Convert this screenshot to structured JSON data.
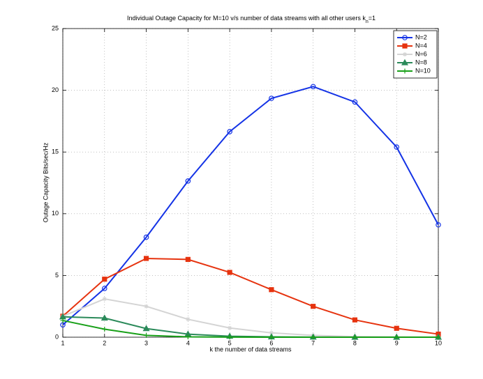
{
  "chart_data": {
    "type": "line",
    "title": "Individual Outage Capacity for M=10 v/s number of data streams with all other users k",
    "title_subscript": "n",
    "title_suffix": "=1",
    "x_label": "k the number of data streams",
    "y_label": "Outage Capacity Bits/sec/Hz",
    "x": [
      1,
      2,
      3,
      4,
      5,
      6,
      7,
      8,
      9,
      10
    ],
    "xlim": [
      1,
      10
    ],
    "xticks": [
      1,
      2,
      3,
      4,
      5,
      6,
      7,
      8,
      9,
      10
    ],
    "ylim": [
      0,
      25
    ],
    "yticks": [
      0,
      5,
      10,
      15,
      20,
      25
    ],
    "grid": true,
    "legend": "northeast",
    "series": [
      {
        "name": "N=2",
        "color": "#1433e6",
        "marker": "circle",
        "values": [
          1.0,
          3.95,
          8.1,
          12.65,
          16.65,
          19.35,
          20.3,
          19.05,
          15.4,
          9.1
        ]
      },
      {
        "name": "N=4",
        "color": "#e6330f",
        "marker": "square",
        "values": [
          1.7,
          4.7,
          6.38,
          6.3,
          5.25,
          3.85,
          2.5,
          1.4,
          0.72,
          0.25
        ]
      },
      {
        "name": "N=6",
        "color": "#d4d4d4",
        "marker": "star",
        "values": [
          1.7,
          3.1,
          2.5,
          1.45,
          0.75,
          0.35,
          0.15,
          0.05,
          0.02,
          0.01
        ]
      },
      {
        "name": "N=8",
        "color": "#2b8a5a",
        "marker": "triangle",
        "values": [
          1.65,
          1.55,
          0.7,
          0.25,
          0.08,
          0.03,
          0.01,
          0,
          0,
          0
        ]
      },
      {
        "name": "N=10",
        "color": "#18a018",
        "marker": "plus",
        "values": [
          1.35,
          0.65,
          0.15,
          0.03,
          0.01,
          0,
          0,
          0,
          0,
          0
        ]
      }
    ]
  }
}
